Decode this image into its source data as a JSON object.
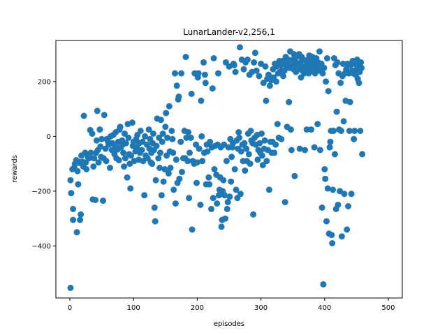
{
  "chart_data": {
    "type": "scatter",
    "title": "LunarLander-v2,256,1",
    "xlabel": "episodes",
    "ylabel": "rewards",
    "xlim": [
      -22,
      522
    ],
    "ylim": [
      -590,
      350
    ],
    "xticks": [
      0,
      100,
      200,
      300,
      400,
      500
    ],
    "yticks": [
      -400,
      -200,
      0,
      200
    ],
    "grid": false,
    "legend": "none",
    "color": "#1f77b4",
    "points": [
      [
        1,
        -553
      ],
      [
        1,
        -160
      ],
      [
        2,
        -207
      ],
      [
        4,
        -120
      ],
      [
        5,
        -265
      ],
      [
        5,
        -305
      ],
      [
        7,
        -113
      ],
      [
        8,
        -100
      ],
      [
        10,
        -87
      ],
      [
        11,
        -350
      ],
      [
        12,
        -127
      ],
      [
        13,
        -175
      ],
      [
        14,
        -93
      ],
      [
        15,
        -97
      ],
      [
        16,
        -305
      ],
      [
        17,
        -285
      ],
      [
        18,
        -70
      ],
      [
        20,
        -93
      ],
      [
        21,
        -110
      ],
      [
        22,
        75
      ],
      [
        24,
        -60
      ],
      [
        25,
        -95
      ],
      [
        26,
        -120
      ],
      [
        28,
        -74
      ],
      [
        30,
        -80
      ],
      [
        31,
        -65
      ],
      [
        32,
        23
      ],
      [
        33,
        -60
      ],
      [
        35,
        10
      ],
      [
        36,
        -230
      ],
      [
        37,
        -110
      ],
      [
        38,
        -80
      ],
      [
        40,
        -232
      ],
      [
        41,
        -60
      ],
      [
        42,
        -15
      ],
      [
        43,
        93
      ],
      [
        44,
        -50
      ],
      [
        45,
        -95
      ],
      [
        47,
        25
      ],
      [
        48,
        -37
      ],
      [
        49,
        -75
      ],
      [
        50,
        -10
      ],
      [
        52,
        -235
      ],
      [
        53,
        -80
      ],
      [
        54,
        78
      ],
      [
        56,
        -45
      ],
      [
        57,
        -90
      ],
      [
        58,
        -10
      ],
      [
        60,
        -20
      ],
      [
        61,
        -30
      ],
      [
        63,
        -115
      ],
      [
        64,
        0
      ],
      [
        66,
        -50
      ],
      [
        67,
        -25
      ],
      [
        68,
        5
      ],
      [
        70,
        -65
      ],
      [
        71,
        -35
      ],
      [
        72,
        15
      ],
      [
        73,
        -80
      ],
      [
        75,
        -48
      ],
      [
        76,
        -20
      ],
      [
        77,
        -87
      ],
      [
        78,
        25
      ],
      [
        79,
        35
      ],
      [
        80,
        -40
      ],
      [
        82,
        -15
      ],
      [
        83,
        -30
      ],
      [
        84,
        -60
      ],
      [
        85,
        -110
      ],
      [
        86,
        10
      ],
      [
        87,
        -80
      ],
      [
        88,
        -25
      ],
      [
        90,
        -150
      ],
      [
        91,
        45
      ],
      [
        92,
        -5
      ],
      [
        93,
        -65
      ],
      [
        94,
        -100
      ],
      [
        95,
        -190
      ],
      [
        96,
        -70
      ],
      [
        98,
        50
      ],
      [
        99,
        -35
      ],
      [
        100,
        -20
      ],
      [
        101,
        -90
      ],
      [
        103,
        -55
      ],
      [
        104,
        -10
      ],
      [
        105,
        -40
      ],
      [
        106,
        5
      ],
      [
        108,
        -85
      ],
      [
        109,
        -25
      ],
      [
        110,
        -60
      ],
      [
        111,
        20
      ],
      [
        113,
        -50
      ],
      [
        114,
        -20
      ],
      [
        115,
        -90
      ],
      [
        117,
        -215
      ],
      [
        118,
        0
      ],
      [
        119,
        -70
      ],
      [
        121,
        -30
      ],
      [
        122,
        -80
      ],
      [
        124,
        25
      ],
      [
        125,
        -45
      ],
      [
        126,
        -10
      ],
      [
        127,
        -95
      ],
      [
        128,
        -60
      ],
      [
        129,
        -100
      ],
      [
        130,
        -25
      ],
      [
        131,
        10
      ],
      [
        132,
        -50
      ],
      [
        133,
        -260
      ],
      [
        134,
        -310
      ],
      [
        135,
        -160
      ],
      [
        136,
        -35
      ],
      [
        137,
        65
      ],
      [
        139,
        -80
      ],
      [
        140,
        -5
      ],
      [
        141,
        -115
      ],
      [
        142,
        -60
      ],
      [
        143,
        60
      ],
      [
        144,
        -215
      ],
      [
        145,
        -20
      ],
      [
        146,
        10
      ],
      [
        147,
        -165
      ],
      [
        149,
        -120
      ],
      [
        150,
        35
      ],
      [
        151,
        85
      ],
      [
        152,
        -70
      ],
      [
        153,
        -5
      ],
      [
        155,
        -135
      ],
      [
        156,
        110
      ],
      [
        157,
        -55
      ],
      [
        158,
        -115
      ],
      [
        160,
        20
      ],
      [
        161,
        -10
      ],
      [
        162,
        -60
      ],
      [
        163,
        -195
      ],
      [
        165,
        230
      ],
      [
        166,
        -245
      ],
      [
        167,
        -85
      ],
      [
        168,
        185
      ],
      [
        169,
        -170
      ],
      [
        170,
        135
      ],
      [
        171,
        145
      ],
      [
        172,
        -155
      ],
      [
        174,
        -20
      ],
      [
        175,
        230
      ],
      [
        176,
        -130
      ],
      [
        178,
        -80
      ],
      [
        180,
        20
      ],
      [
        181,
        -80
      ],
      [
        182,
        290
      ],
      [
        183,
        -5
      ],
      [
        185,
        -90
      ],
      [
        186,
        15
      ],
      [
        187,
        -225
      ],
      [
        188,
        -60
      ],
      [
        190,
        -5
      ],
      [
        191,
        155
      ],
      [
        192,
        -340
      ],
      [
        193,
        -90
      ],
      [
        195,
        -100
      ],
      [
        196,
        230
      ],
      [
        198,
        -30
      ],
      [
        199,
        -170
      ],
      [
        200,
        -95
      ],
      [
        201,
        215
      ],
      [
        202,
        230
      ],
      [
        203,
        -45
      ],
      [
        205,
        -250
      ],
      [
        206,
        130
      ],
      [
        207,
        0
      ],
      [
        208,
        -90
      ],
      [
        210,
        270
      ],
      [
        211,
        -60
      ],
      [
        212,
        225
      ],
      [
        213,
        195
      ],
      [
        214,
        -175
      ],
      [
        215,
        -30
      ],
      [
        216,
        -55
      ],
      [
        218,
        -150
      ],
      [
        219,
        -175
      ],
      [
        220,
        -20
      ],
      [
        222,
        -265
      ],
      [
        223,
        -40
      ],
      [
        224,
        175
      ],
      [
        225,
        -225
      ],
      [
        226,
        285
      ],
      [
        227,
        -120
      ],
      [
        228,
        -35
      ],
      [
        230,
        -140
      ],
      [
        231,
        -245
      ],
      [
        232,
        -30
      ],
      [
        233,
        230
      ],
      [
        234,
        -215
      ],
      [
        235,
        -195
      ],
      [
        236,
        -150
      ],
      [
        237,
        -40
      ],
      [
        238,
        -330
      ],
      [
        239,
        -305
      ],
      [
        240,
        -200
      ],
      [
        241,
        -160
      ],
      [
        242,
        -30
      ],
      [
        243,
        -215
      ],
      [
        244,
        -300
      ],
      [
        245,
        270
      ],
      [
        246,
        -90
      ],
      [
        247,
        -265
      ],
      [
        248,
        -240
      ],
      [
        249,
        -40
      ],
      [
        250,
        255
      ],
      [
        251,
        -220
      ],
      [
        252,
        -10
      ],
      [
        253,
        -165
      ],
      [
        254,
        -75
      ],
      [
        255,
        -40
      ],
      [
        256,
        -25
      ],
      [
        257,
        265
      ],
      [
        258,
        260
      ],
      [
        259,
        -120
      ],
      [
        260,
        235
      ],
      [
        261,
        -195
      ],
      [
        262,
        -15
      ],
      [
        263,
        -225
      ],
      [
        264,
        -45
      ],
      [
        265,
        15
      ],
      [
        266,
        -5
      ],
      [
        267,
        325
      ],
      [
        268,
        -210
      ],
      [
        269,
        -55
      ],
      [
        270,
        280
      ],
      [
        271,
        -30
      ],
      [
        272,
        -90
      ],
      [
        273,
        245
      ],
      [
        274,
        -25
      ],
      [
        275,
        -125
      ],
      [
        276,
        270
      ],
      [
        277,
        -45
      ],
      [
        278,
        -90
      ],
      [
        279,
        280
      ],
      [
        280,
        10
      ],
      [
        281,
        -65
      ],
      [
        282,
        225
      ],
      [
        283,
        -100
      ],
      [
        284,
        20
      ],
      [
        285,
        -15
      ],
      [
        286,
        235
      ],
      [
        287,
        -25
      ],
      [
        288,
        -285
      ],
      [
        289,
        270
      ],
      [
        290,
        -5
      ],
      [
        291,
        305
      ],
      [
        292,
        -30
      ],
      [
        293,
        240
      ],
      [
        294,
        5
      ],
      [
        295,
        -85
      ],
      [
        296,
        -50
      ],
      [
        297,
        220
      ],
      [
        298,
        -25
      ],
      [
        299,
        -60
      ],
      [
        300,
        265
      ],
      [
        301,
        10
      ],
      [
        302,
        -70
      ],
      [
        303,
        -105
      ],
      [
        304,
        195
      ],
      [
        305,
        -45
      ],
      [
        306,
        -15
      ],
      [
        307,
        255
      ],
      [
        308,
        130
      ],
      [
        309,
        -90
      ],
      [
        310,
        210
      ],
      [
        311,
        -50
      ],
      [
        312,
        225
      ],
      [
        313,
        -195
      ],
      [
        314,
        185
      ],
      [
        315,
        -20
      ],
      [
        316,
        205
      ],
      [
        317,
        -60
      ],
      [
        318,
        -20
      ],
      [
        319,
        245
      ],
      [
        320,
        215
      ],
      [
        321,
        -60
      ],
      [
        322,
        265
      ],
      [
        323,
        -30
      ],
      [
        324,
        200
      ],
      [
        325,
        255
      ],
      [
        326,
        45
      ],
      [
        327,
        230
      ],
      [
        328,
        -5
      ],
      [
        329,
        275
      ],
      [
        330,
        235
      ],
      [
        331,
        260
      ],
      [
        332,
        -10
      ],
      [
        333,
        240
      ],
      [
        334,
        275
      ],
      [
        335,
        220
      ],
      [
        336,
        265
      ],
      [
        337,
        240
      ],
      [
        338,
        -240
      ],
      [
        339,
        290
      ],
      [
        340,
        255
      ],
      [
        341,
        35
      ],
      [
        342,
        265
      ],
      [
        343,
        280
      ],
      [
        344,
        125
      ],
      [
        345,
        250
      ],
      [
        346,
        310
      ],
      [
        347,
        25
      ],
      [
        348,
        -50
      ],
      [
        349,
        260
      ],
      [
        350,
        280
      ],
      [
        351,
        245
      ],
      [
        352,
        300
      ],
      [
        353,
        -145
      ],
      [
        354,
        270
      ],
      [
        355,
        235
      ],
      [
        356,
        290
      ],
      [
        357,
        255
      ],
      [
        358,
        265
      ],
      [
        359,
        245
      ],
      [
        360,
        300
      ],
      [
        361,
        -45
      ],
      [
        362,
        270
      ],
      [
        363,
        215
      ],
      [
        364,
        290
      ],
      [
        365,
        240
      ],
      [
        366,
        255
      ],
      [
        367,
        280
      ],
      [
        368,
        230
      ],
      [
        369,
        -50
      ],
      [
        370,
        240
      ],
      [
        371,
        275
      ],
      [
        372,
        25
      ],
      [
        373,
        260
      ],
      [
        374,
        280
      ],
      [
        375,
        230
      ],
      [
        376,
        295
      ],
      [
        377,
        265
      ],
      [
        378,
        250
      ],
      [
        379,
        25
      ],
      [
        380,
        240
      ],
      [
        381,
        290
      ],
      [
        382,
        275
      ],
      [
        383,
        245
      ],
      [
        384,
        -40
      ],
      [
        385,
        230
      ],
      [
        386,
        260
      ],
      [
        387,
        285
      ],
      [
        388,
        250
      ],
      [
        389,
        45
      ],
      [
        390,
        270
      ],
      [
        391,
        240
      ],
      [
        392,
        310
      ],
      [
        393,
        -50
      ],
      [
        394,
        245
      ],
      [
        395,
        265
      ],
      [
        396,
        -260
      ],
      [
        397,
        230
      ],
      [
        398,
        -540
      ],
      [
        399,
        250
      ],
      [
        400,
        -120
      ],
      [
        401,
        -155
      ],
      [
        402,
        200
      ],
      [
        403,
        -310
      ],
      [
        404,
        285
      ],
      [
        405,
        -190
      ],
      [
        406,
        165
      ],
      [
        407,
        -355
      ],
      [
        408,
        -40
      ],
      [
        409,
        -20
      ],
      [
        410,
        20
      ],
      [
        411,
        -360
      ],
      [
        412,
        -390
      ],
      [
        413,
        -195
      ],
      [
        414,
        20
      ],
      [
        415,
        285
      ],
      [
        416,
        -65
      ],
      [
        417,
        260
      ],
      [
        418,
        -265
      ],
      [
        419,
        90
      ],
      [
        420,
        270
      ],
      [
        421,
        -250
      ],
      [
        422,
        230
      ],
      [
        423,
        25
      ],
      [
        424,
        -200
      ],
      [
        425,
        195
      ],
      [
        426,
        20
      ],
      [
        427,
        -365
      ],
      [
        428,
        220
      ],
      [
        429,
        265
      ],
      [
        430,
        55
      ],
      [
        431,
        -210
      ],
      [
        432,
        230
      ],
      [
        433,
        130
      ],
      [
        434,
        245
      ],
      [
        435,
        -340
      ],
      [
        436,
        265
      ],
      [
        437,
        -255
      ],
      [
        438,
        230
      ],
      [
        439,
        20
      ],
      [
        440,
        125
      ],
      [
        441,
        260
      ],
      [
        442,
        -210
      ],
      [
        443,
        240
      ],
      [
        444,
        275
      ],
      [
        445,
        230
      ],
      [
        446,
        -10
      ],
      [
        447,
        20
      ],
      [
        448,
        265
      ],
      [
        449,
        225
      ],
      [
        450,
        245
      ],
      [
        451,
        280
      ],
      [
        452,
        210
      ],
      [
        453,
        260
      ],
      [
        454,
        195
      ],
      [
        455,
        235
      ],
      [
        456,
        20
      ],
      [
        457,
        270
      ],
      [
        458,
        250
      ],
      [
        459,
        -65
      ]
    ]
  }
}
